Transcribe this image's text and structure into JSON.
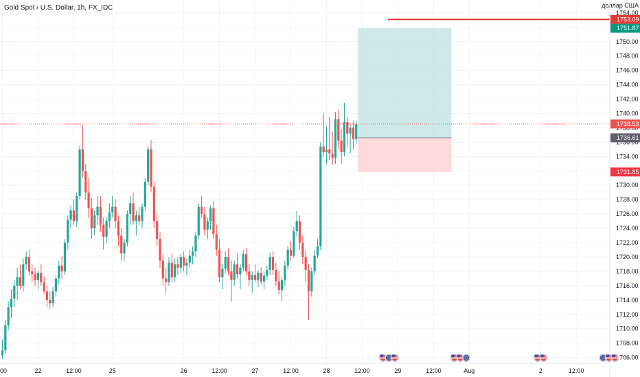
{
  "header": {
    "symbol_title": "Gold Spot / U.S. Dollar, 1h, FX_IDC",
    "currency_label": "доллар США"
  },
  "colors": {
    "up": "#26a69a",
    "down": "#ef5350",
    "profit_zone": "#b2dfdb",
    "loss_zone": "#ffcdd2",
    "alert_line": "#e53935",
    "current_price": "#ef5350",
    "entry_label": "#5d606b",
    "target_label": "#089981",
    "stop_label": "#f23645"
  },
  "chart_data": {
    "type": "candlestick",
    "title": "Gold Spot / U.S. Dollar, 1h, FX_IDC",
    "ylabel": "доллар США",
    "ylim": [
      1705.2,
      1755.8
    ],
    "y_ticks": [
      "1706.00",
      "1708.00",
      "1710.00",
      "1712.00",
      "1714.00",
      "1716.00",
      "1718.00",
      "1720.00",
      "1722.00",
      "1724.00",
      "1726.00",
      "1728.00",
      "1730.00",
      "1732.00",
      "1734.00",
      "1736.00",
      "1738.00",
      "1740.00",
      "1742.00",
      "1744.00",
      "1746.00",
      "1748.00",
      "1750.00",
      "1752.00",
      "1754.00"
    ],
    "x_ticks": [
      {
        "label": "00",
        "index": 0
      },
      {
        "label": "22",
        "index": 12
      },
      {
        "label": "12:00",
        "index": 24
      },
      {
        "label": "25",
        "index": 37
      },
      {
        "label": "26",
        "index": 61
      },
      {
        "label": "12:00",
        "index": 73
      },
      {
        "label": "27",
        "index": 85
      },
      {
        "label": "12:00",
        "index": 97
      },
      {
        "label": "28",
        "index": 109
      },
      {
        "label": "12:00",
        "index": 121
      },
      {
        "label": "29",
        "index": 133
      },
      {
        "label": "12:00",
        "index": 145
      },
      {
        "label": "Aug",
        "index": 157
      },
      {
        "label": "2",
        "index": 181
      },
      {
        "label": "12:00",
        "index": 193
      }
    ],
    "candles_ohlc": [
      [
        1706.3,
        1708.5,
        1705.8,
        1707.0
      ],
      [
        1707.0,
        1711.2,
        1706.5,
        1710.5
      ],
      [
        1710.5,
        1713.8,
        1709.8,
        1713.0
      ],
      [
        1713.0,
        1715.5,
        1711.5,
        1714.2
      ],
      [
        1714.2,
        1716.8,
        1713.0,
        1716.0
      ],
      [
        1716.0,
        1718.5,
        1714.0,
        1717.2
      ],
      [
        1717.2,
        1718.9,
        1715.5,
        1716.0
      ],
      [
        1716.0,
        1719.8,
        1715.2,
        1719.0
      ],
      [
        1719.0,
        1720.8,
        1718.2,
        1720.0
      ],
      [
        1720.0,
        1721.0,
        1717.5,
        1718.0
      ],
      [
        1718.0,
        1719.0,
        1716.5,
        1717.6
      ],
      [
        1717.6,
        1718.5,
        1716.0,
        1716.8
      ],
      [
        1716.8,
        1718.2,
        1715.5,
        1717.8
      ],
      [
        1717.8,
        1719.0,
        1716.0,
        1716.5
      ],
      [
        1716.5,
        1717.3,
        1714.8,
        1715.2
      ],
      [
        1715.2,
        1716.0,
        1713.0,
        1714.0
      ],
      [
        1714.0,
        1715.2,
        1712.8,
        1713.6
      ],
      [
        1713.6,
        1715.8,
        1713.0,
        1715.2
      ],
      [
        1715.2,
        1717.5,
        1714.5,
        1717.0
      ],
      [
        1717.0,
        1719.5,
        1716.2,
        1718.8
      ],
      [
        1718.8,
        1720.2,
        1717.0,
        1718.0
      ],
      [
        1718.0,
        1722.5,
        1717.5,
        1722.0
      ],
      [
        1722.0,
        1725.8,
        1721.0,
        1725.2
      ],
      [
        1725.2,
        1727.2,
        1724.0,
        1726.5
      ],
      [
        1726.5,
        1728.0,
        1724.5,
        1725.0
      ],
      [
        1725.0,
        1729.0,
        1724.2,
        1728.5
      ],
      [
        1728.5,
        1735.5,
        1728.0,
        1735.0
      ],
      [
        1735.0,
        1738.4,
        1731.0,
        1732.0
      ],
      [
        1732.0,
        1733.0,
        1728.0,
        1729.0
      ],
      [
        1729.0,
        1731.0,
        1725.5,
        1726.8
      ],
      [
        1726.8,
        1728.2,
        1722.5,
        1724.0
      ],
      [
        1724.0,
        1726.5,
        1723.0,
        1725.8
      ],
      [
        1725.8,
        1728.5,
        1724.5,
        1727.0
      ],
      [
        1727.0,
        1728.5,
        1723.5,
        1724.5
      ],
      [
        1724.5,
        1725.5,
        1721.0,
        1722.8
      ],
      [
        1722.8,
        1725.5,
        1722.0,
        1725.0
      ],
      [
        1725.0,
        1727.5,
        1724.0,
        1726.2
      ],
      [
        1726.2,
        1728.5,
        1725.5,
        1727.0
      ],
      [
        1727.0,
        1728.0,
        1724.0,
        1725.0
      ],
      [
        1725.0,
        1725.8,
        1721.5,
        1723.0
      ],
      [
        1723.0,
        1724.0,
        1719.5,
        1720.5
      ],
      [
        1720.5,
        1722.5,
        1719.5,
        1722.0
      ],
      [
        1722.0,
        1726.5,
        1721.5,
        1726.0
      ],
      [
        1726.0,
        1728.5,
        1724.5,
        1727.5
      ],
      [
        1727.5,
        1729.0,
        1724.5,
        1725.0
      ],
      [
        1725.0,
        1726.5,
        1723.0,
        1725.8
      ],
      [
        1725.8,
        1727.0,
        1724.5,
        1725.0
      ],
      [
        1725.0,
        1727.5,
        1724.0,
        1727.0
      ],
      [
        1727.0,
        1731.0,
        1726.5,
        1730.5
      ],
      [
        1730.5,
        1735.5,
        1730.0,
        1735.0
      ],
      [
        1735.0,
        1736.3,
        1729.0,
        1729.8
      ],
      [
        1729.8,
        1730.5,
        1724.0,
        1725.0
      ],
      [
        1725.0,
        1726.0,
        1721.5,
        1722.5
      ],
      [
        1722.5,
        1723.5,
        1718.5,
        1719.5
      ],
      [
        1719.5,
        1720.5,
        1716.0,
        1717.0
      ],
      [
        1717.0,
        1718.5,
        1715.0,
        1716.5
      ],
      [
        1716.5,
        1720.0,
        1716.0,
        1719.2
      ],
      [
        1719.2,
        1720.5,
        1716.5,
        1717.2
      ],
      [
        1717.2,
        1719.8,
        1716.5,
        1719.0
      ],
      [
        1719.0,
        1720.0,
        1717.5,
        1718.5
      ],
      [
        1718.5,
        1720.5,
        1717.8,
        1720.0
      ],
      [
        1720.0,
        1720.8,
        1718.0,
        1718.8
      ],
      [
        1718.8,
        1719.8,
        1717.5,
        1719.2
      ],
      [
        1719.2,
        1721.0,
        1718.5,
        1720.2
      ],
      [
        1720.2,
        1721.5,
        1719.0,
        1720.8
      ],
      [
        1720.8,
        1723.5,
        1720.0,
        1723.0
      ],
      [
        1723.0,
        1727.5,
        1722.5,
        1727.0
      ],
      [
        1727.0,
        1728.5,
        1725.5,
        1726.0
      ],
      [
        1726.0,
        1727.0,
        1723.0,
        1723.8
      ],
      [
        1723.8,
        1725.5,
        1722.5,
        1725.0
      ],
      [
        1725.0,
        1727.2,
        1723.8,
        1726.8
      ],
      [
        1726.8,
        1727.8,
        1722.5,
        1723.2
      ],
      [
        1723.2,
        1724.5,
        1720.2,
        1721.0
      ],
      [
        1721.0,
        1722.5,
        1716.5,
        1717.2
      ],
      [
        1717.2,
        1719.0,
        1715.5,
        1718.4
      ],
      [
        1718.4,
        1720.8,
        1717.8,
        1720.0
      ],
      [
        1720.0,
        1721.2,
        1717.5,
        1718.0
      ],
      [
        1718.0,
        1719.5,
        1713.8,
        1716.8
      ],
      [
        1716.8,
        1719.5,
        1716.0,
        1719.0
      ],
      [
        1719.0,
        1720.5,
        1717.0,
        1717.6
      ],
      [
        1717.6,
        1719.0,
        1715.5,
        1718.5
      ],
      [
        1718.5,
        1721.0,
        1718.0,
        1720.4
      ],
      [
        1720.4,
        1721.2,
        1717.5,
        1718.0
      ],
      [
        1718.0,
        1719.0,
        1716.0,
        1716.8
      ],
      [
        1716.8,
        1718.0,
        1715.0,
        1717.5
      ],
      [
        1717.5,
        1719.0,
        1716.5,
        1716.8
      ],
      [
        1716.8,
        1718.2,
        1715.8,
        1717.8
      ],
      [
        1717.8,
        1718.6,
        1716.2,
        1716.6
      ],
      [
        1716.6,
        1718.0,
        1715.5,
        1717.4
      ],
      [
        1717.4,
        1718.8,
        1716.8,
        1718.2
      ],
      [
        1718.2,
        1720.6,
        1717.5,
        1720.0
      ],
      [
        1720.0,
        1720.8,
        1717.5,
        1718.2
      ],
      [
        1718.2,
        1719.2,
        1716.0,
        1716.6
      ],
      [
        1716.6,
        1718.0,
        1714.8,
        1715.4
      ],
      [
        1715.4,
        1717.2,
        1713.8,
        1716.8
      ],
      [
        1716.8,
        1719.5,
        1716.0,
        1718.8
      ],
      [
        1718.8,
        1721.5,
        1718.2,
        1721.0
      ],
      [
        1721.0,
        1722.2,
        1719.5,
        1720.2
      ],
      [
        1720.2,
        1724.2,
        1719.8,
        1723.6
      ],
      [
        1723.6,
        1726.4,
        1722.8,
        1725.0
      ],
      [
        1725.0,
        1725.8,
        1721.0,
        1722.0
      ],
      [
        1722.0,
        1723.0,
        1719.0,
        1720.0
      ],
      [
        1720.0,
        1721.0,
        1716.5,
        1718.2
      ],
      [
        1718.2,
        1719.0,
        1711.2,
        1715.2
      ],
      [
        1715.2,
        1718.5,
        1714.5,
        1718.0
      ],
      [
        1718.0,
        1721.0,
        1717.5,
        1720.2
      ],
      [
        1720.2,
        1722.5,
        1719.8,
        1721.5
      ],
      [
        1721.5,
        1736.0,
        1721.0,
        1735.4
      ],
      [
        1735.4,
        1740.0,
        1734.0,
        1734.6
      ],
      [
        1734.6,
        1738.2,
        1733.0,
        1735.0
      ],
      [
        1735.0,
        1739.5,
        1733.5,
        1734.4
      ],
      [
        1734.4,
        1737.5,
        1732.8,
        1733.8
      ],
      [
        1733.8,
        1740.2,
        1733.0,
        1739.2
      ],
      [
        1739.2,
        1740.5,
        1735.0,
        1736.2
      ],
      [
        1736.2,
        1737.8,
        1733.0,
        1734.6
      ],
      [
        1734.6,
        1741.5,
        1734.0,
        1738.8
      ],
      [
        1738.8,
        1739.5,
        1735.5,
        1737.2
      ],
      [
        1737.2,
        1738.5,
        1734.5,
        1738.0
      ],
      [
        1738.0,
        1739.0,
        1735.0,
        1736.4
      ],
      [
        1736.4,
        1739.0,
        1735.8,
        1738.5
      ]
    ],
    "current_price": "1738.53",
    "alert_level": "1753.09",
    "position": {
      "type": "long",
      "entry": "1736.61",
      "target": "1751.87",
      "stop": "1731.85",
      "start_index": 120,
      "end_index": 151
    },
    "event_markers": [
      {
        "index": 128,
        "label": "US"
      },
      {
        "index": 130,
        "label": "EU"
      },
      {
        "index": 132,
        "label": "US"
      },
      {
        "index": 152,
        "label": "US"
      },
      {
        "index": 154,
        "label": "US"
      },
      {
        "index": 156,
        "label": "EU"
      },
      {
        "index": 180,
        "label": "US"
      },
      {
        "index": 182,
        "label": "US"
      },
      {
        "index": 202,
        "label": "EU"
      },
      {
        "index": 204,
        "label": "US"
      },
      {
        "index": 206,
        "label": "US"
      }
    ]
  }
}
